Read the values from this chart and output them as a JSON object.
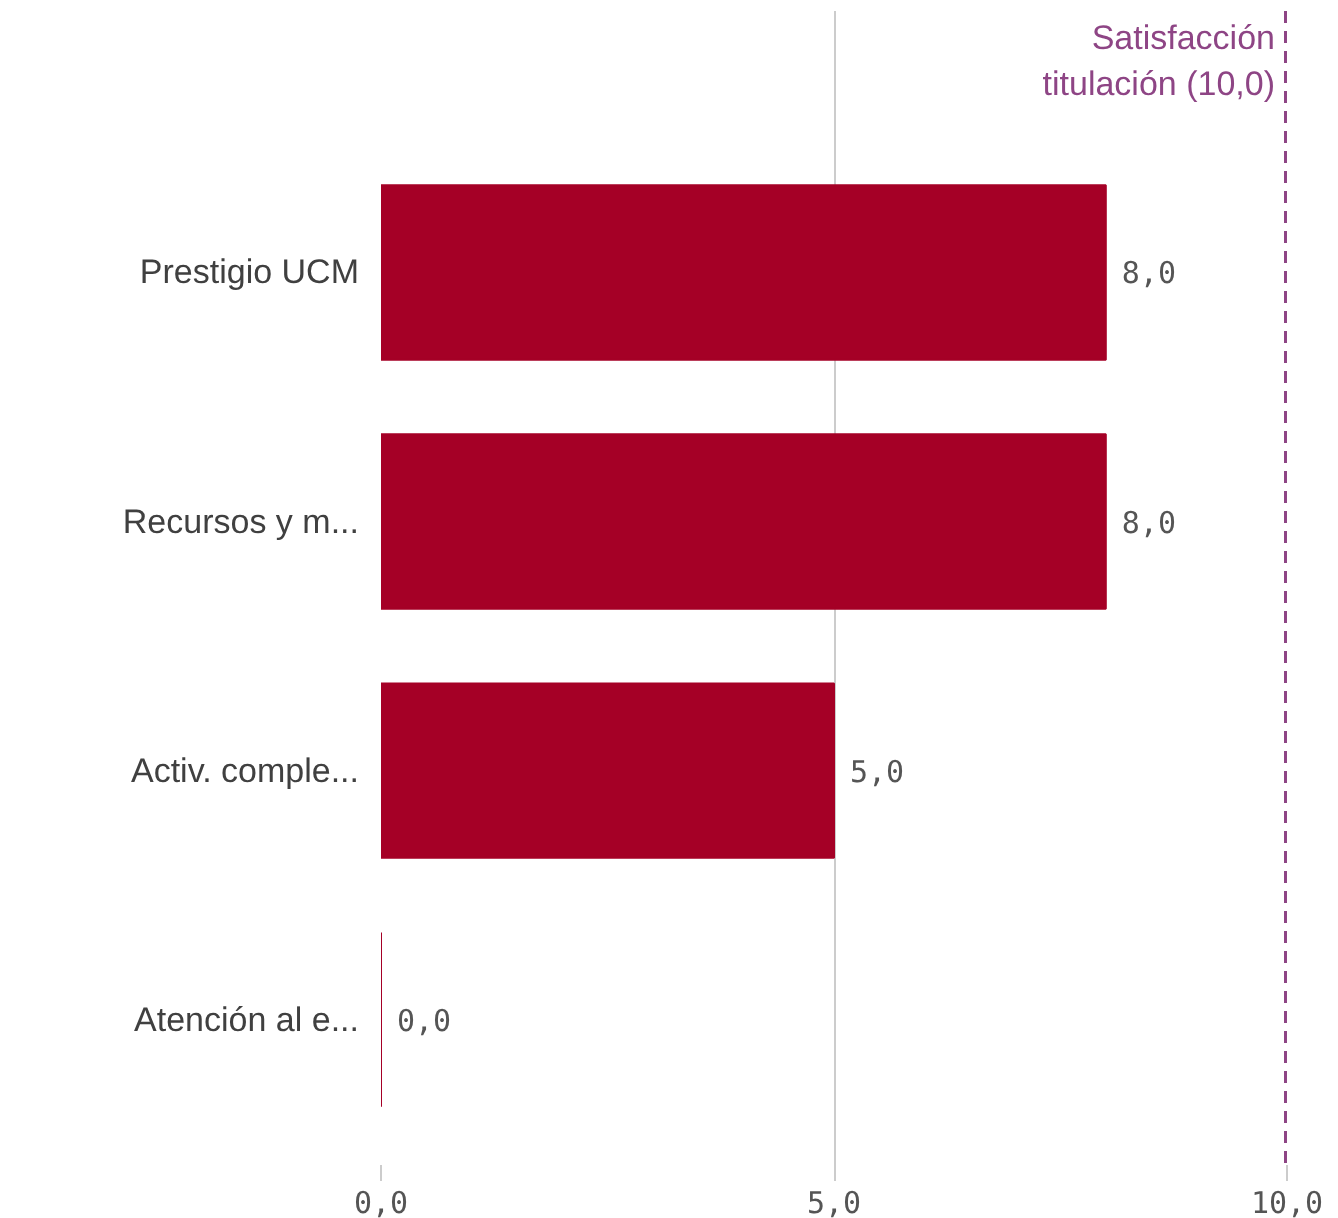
{
  "chart_data": {
    "type": "bar",
    "orientation": "horizontal",
    "categories": [
      "Prestigio UCM",
      "Recursos y m...",
      "Activ. comple...",
      "Atención al e..."
    ],
    "values": [
      8,
      8,
      5,
      0
    ],
    "value_labels": [
      "8,0",
      "8,0",
      "5,0",
      "0,0"
    ],
    "color": "#a50026",
    "xlim": [
      0,
      10
    ],
    "xticks": [
      {
        "value": 0,
        "label": "0,0"
      },
      {
        "value": 5,
        "label": "5,0"
      },
      {
        "value": 10,
        "label": "10,0"
      }
    ],
    "grid": "x",
    "ref_lines": [
      {
        "axis": "x",
        "value": 10,
        "label": "Satisfacción titulación (10,0)",
        "color": "#8e4585",
        "line_style": "dashed"
      }
    ]
  }
}
